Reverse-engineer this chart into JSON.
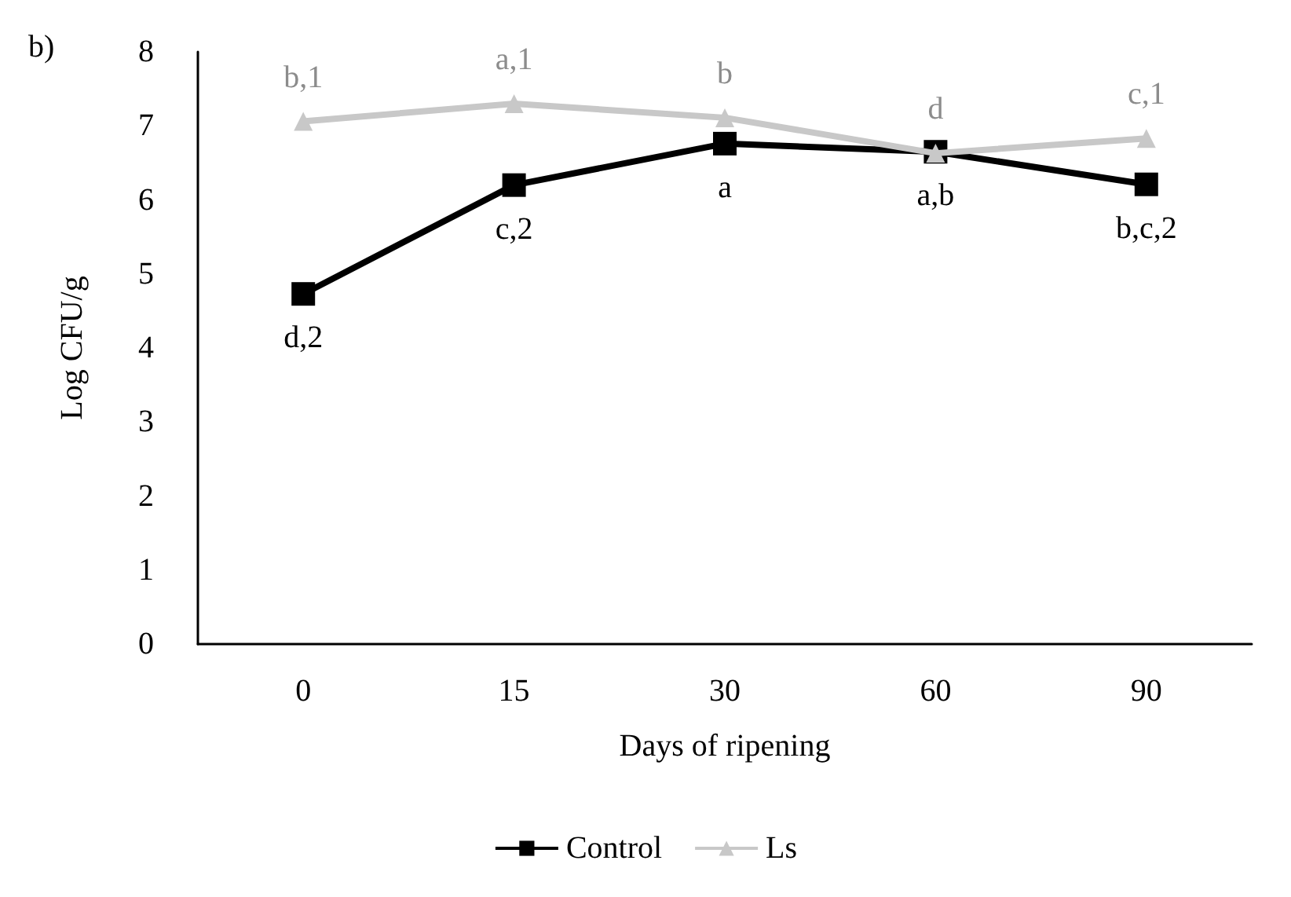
{
  "chart_data": {
    "type": "line",
    "xlabel": "Days of ripening",
    "ylabel": "Log CFU/g",
    "categories": [
      "0",
      "15",
      "30",
      "60",
      "90"
    ],
    "ylim": [
      0,
      8
    ],
    "yticks": [
      0,
      1,
      2,
      3,
      4,
      5,
      6,
      7,
      8
    ],
    "grid": false,
    "legend": "bottom",
    "series": [
      {
        "name": "Control",
        "color": "#000000",
        "marker": "square",
        "values": [
          4.73,
          6.2,
          6.76,
          6.65,
          6.21
        ]
      },
      {
        "name": "Ls",
        "color": "#c8c8c8",
        "marker": "triangle",
        "values": [
          7.06,
          7.3,
          7.11,
          6.63,
          6.83
        ]
      }
    ],
    "annotations": [
      "b)",
      {
        "text": "d,2",
        "x": "0",
        "y": 4.73
      },
      {
        "text": "c,2",
        "x": "15",
        "y": 6.2
      },
      {
        "text": "a",
        "x": "30",
        "y": 6.76
      },
      {
        "text": "a,b",
        "x": "60",
        "y": 6.65
      },
      {
        "text": "b,c,2",
        "x": "90",
        "y": 6.21
      },
      {
        "text": "b,1",
        "x": "0",
        "y": 7.06
      },
      {
        "text": "a,1",
        "x": "15",
        "y": 7.3
      },
      {
        "text": "b",
        "x": "30",
        "y": 7.11
      },
      {
        "text": "d",
        "x": "60",
        "y": 6.63
      },
      {
        "text": "c,1",
        "x": "90",
        "y": 6.83
      }
    ]
  }
}
